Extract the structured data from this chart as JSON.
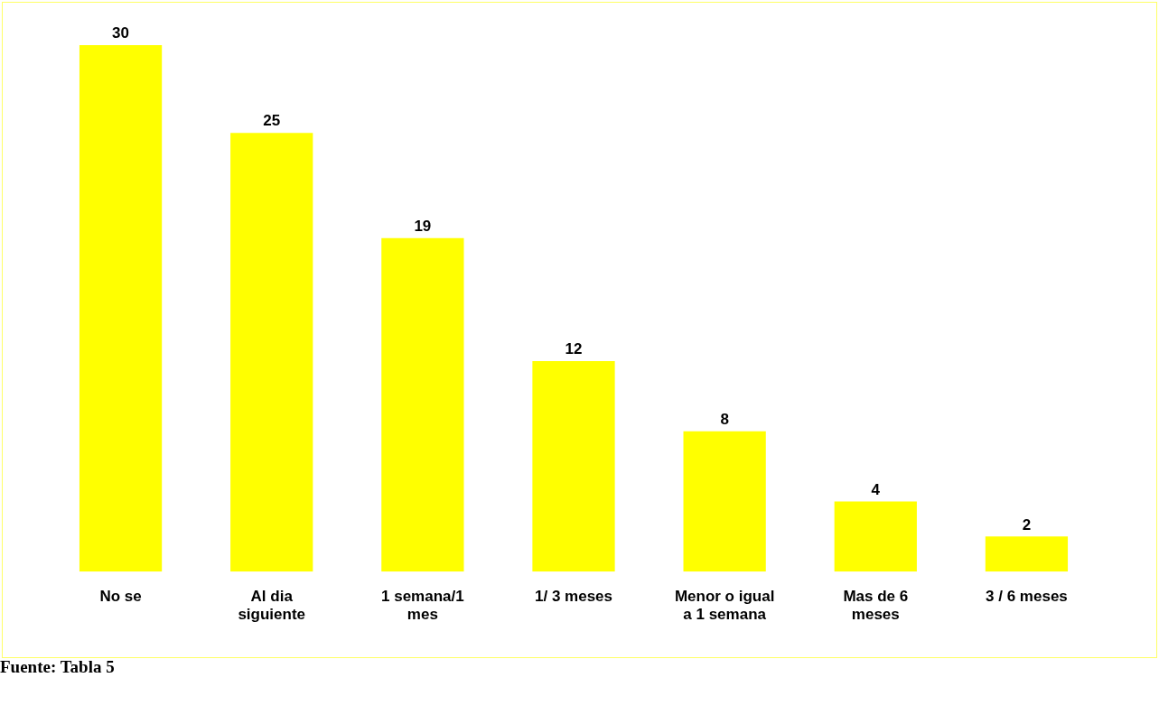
{
  "chart_data": {
    "type": "bar",
    "categories": [
      "No se",
      "Al dia siguiente",
      "1 semana/1 mes",
      "1/ 3 meses",
      "Menor o igual a 1 semana",
      "Mas de 6 meses",
      "3 / 6 meses"
    ],
    "values": [
      30,
      25,
      19,
      12,
      8,
      4,
      2
    ],
    "color": "#ffff00",
    "data_labels": true,
    "grid": false,
    "legend": false,
    "annotations": [
      "Fuente: Tabla 5"
    ]
  }
}
